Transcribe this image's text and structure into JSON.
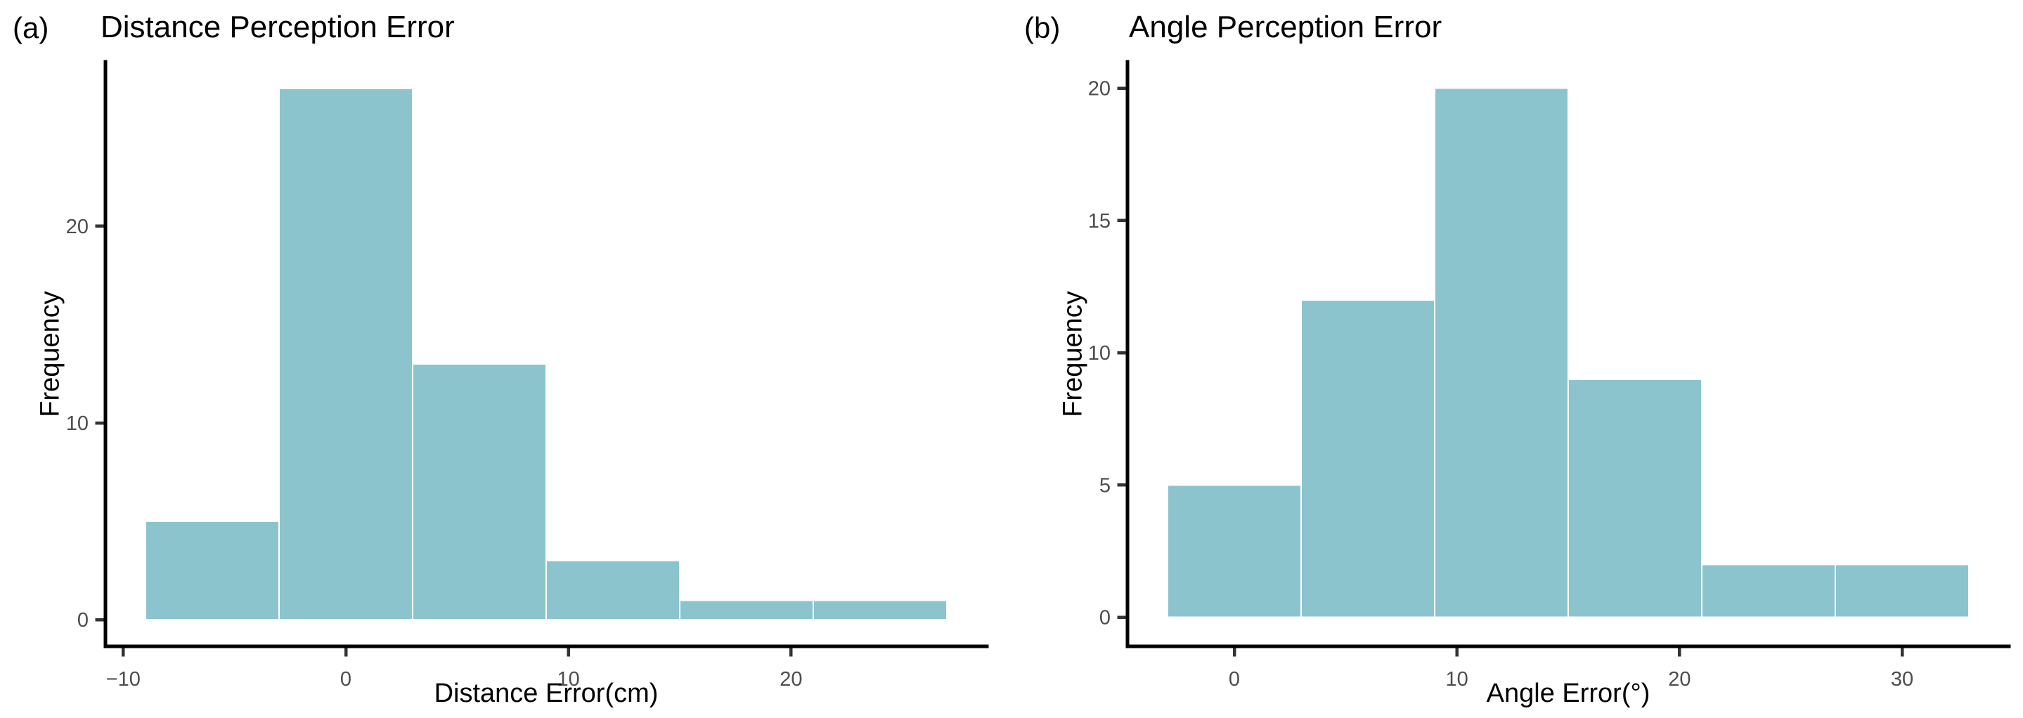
{
  "figure": {
    "background": "#FFFFFF",
    "bar_fill": "#8CC4CD",
    "bar_stroke": "#FFFFFF",
    "axis_line_color": "#000000",
    "tick_mark_color": "#333333",
    "tick_label_color": "#4D4D4D",
    "text_color": "#000000"
  },
  "chart_data": [
    {
      "type": "bar",
      "subtype": "histogram",
      "panel_label": "(a)",
      "title": "Distance Perception Error",
      "xlabel": "Distance Error(cm)",
      "ylabel": "Frequency",
      "bin_edges": [
        -9,
        -3,
        3,
        9,
        15,
        21,
        27
      ],
      "counts": [
        5,
        27,
        13,
        3,
        1,
        1
      ],
      "x_tick_values": [
        -10,
        0,
        10,
        20
      ],
      "x_tick_labels": [
        "−10",
        "0",
        "10",
        "20"
      ],
      "y_tick_values": [
        0,
        10,
        20
      ],
      "y_tick_labels": [
        "0",
        "10",
        "20"
      ],
      "xlim": [
        -10.8,
        28.8
      ],
      "ylim": [
        -1.35,
        28.35
      ],
      "grid": false,
      "legend": "none"
    },
    {
      "type": "bar",
      "subtype": "histogram",
      "panel_label": "(b)",
      "title": "Angle Perception Error",
      "xlabel": "Angle Error(°)",
      "ylabel": "Frequency",
      "bin_edges": [
        -3,
        3,
        9,
        15,
        21,
        27,
        33
      ],
      "counts": [
        5,
        12,
        20,
        9,
        2,
        2
      ],
      "x_tick_values": [
        0,
        10,
        20,
        30
      ],
      "x_tick_labels": [
        "0",
        "10",
        "20",
        "30"
      ],
      "y_tick_values": [
        0,
        5,
        10,
        15,
        20
      ],
      "y_tick_labels": [
        "0",
        "5",
        "10",
        "15",
        "20"
      ],
      "xlim": [
        -4.8,
        34.8
      ],
      "ylim": [
        -1.1,
        21.0
      ],
      "grid": false,
      "legend": "none"
    }
  ]
}
